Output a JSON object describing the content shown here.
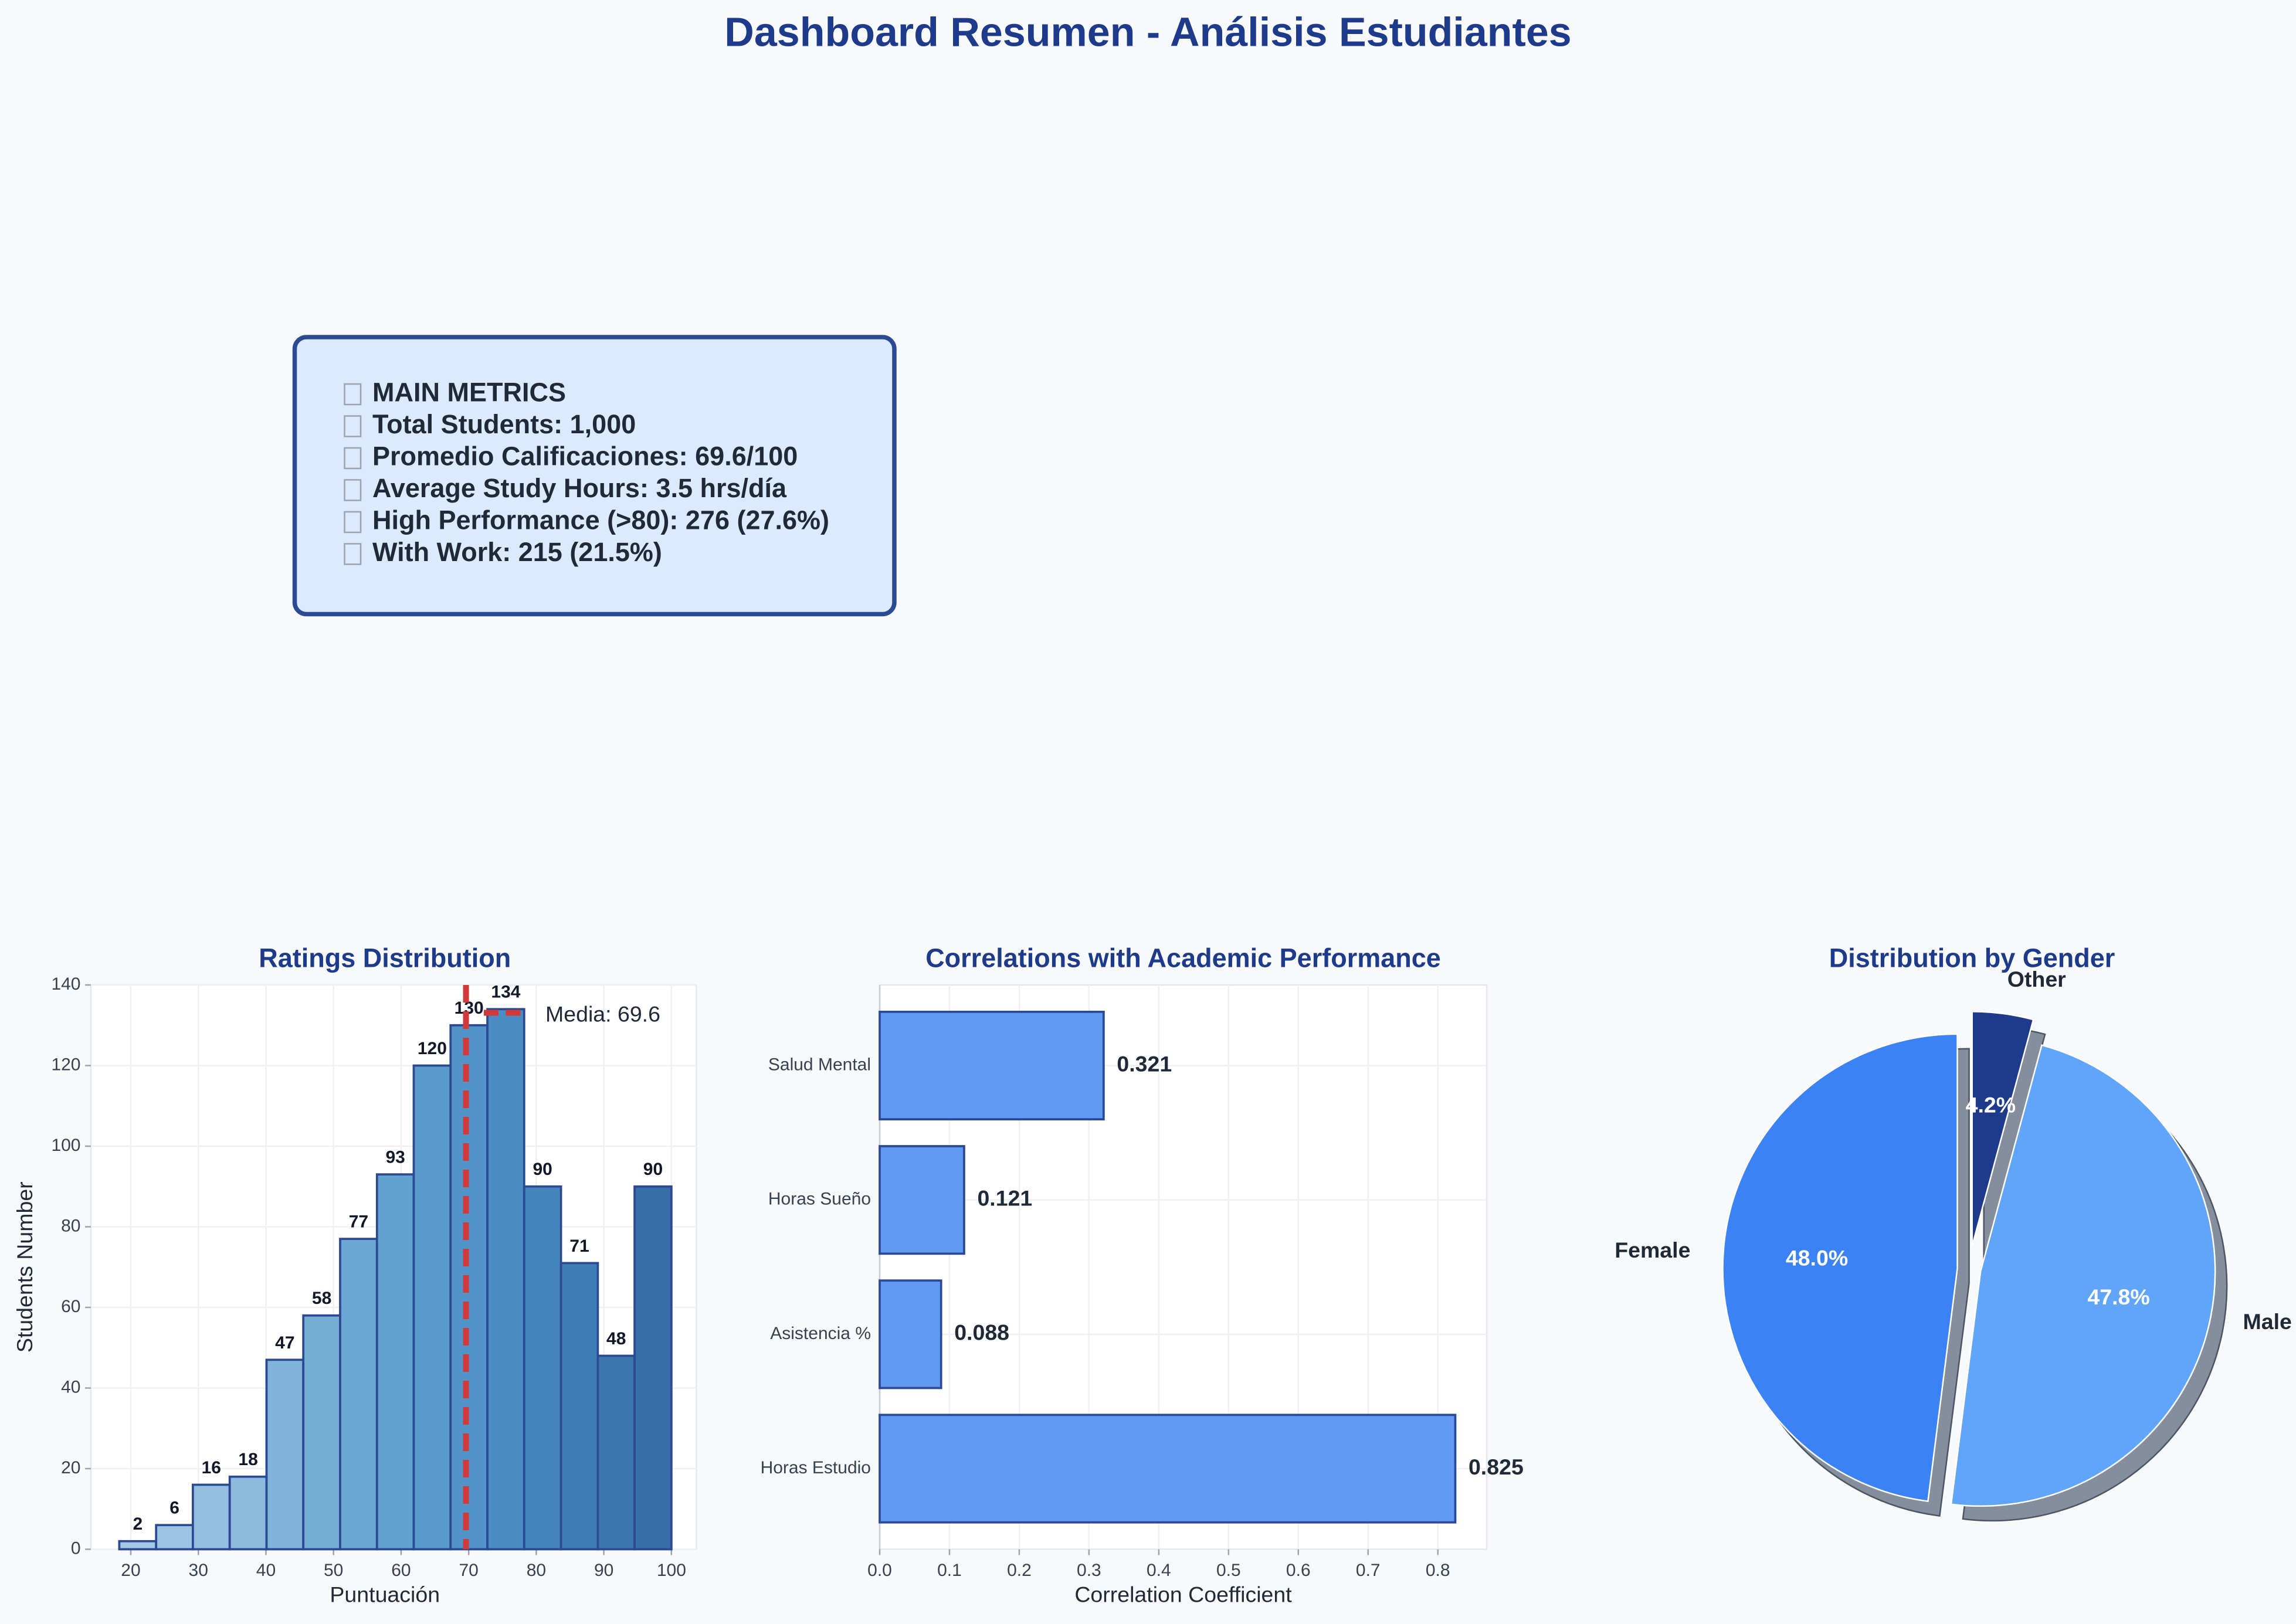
{
  "title": "Dashboard Resumen - Análisis Estudiantes",
  "metrics": [
    "MAIN METRICS",
    "Total Students: 1,000",
    "Promedio Calificaciones: 69.6/100",
    "Average Study Hours: 3.5 hrs/día",
    "High Performance (>80): 276 (27.6%)",
    "With Work: 215 (21.5%)"
  ],
  "chart_data": [
    {
      "type": "histogram",
      "title": "Ratings Distribution",
      "x_label": "Puntuación",
      "y_label": "Students Number",
      "bins": [
        18.3,
        23.75,
        29.19,
        34.64,
        40.09,
        45.53,
        50.98,
        56.43,
        61.87,
        67.32,
        72.77,
        78.21,
        83.66,
        89.11,
        94.55,
        100
      ],
      "values": [
        2,
        6,
        16,
        18,
        47,
        58,
        77,
        93,
        120,
        130,
        134,
        90,
        71,
        48,
        90
      ],
      "colors": [
        "#a4c8e4",
        "#9cc4e2",
        "#94bfe0",
        "#8cbbde",
        "#80b4da",
        "#76aed6",
        "#6ca8d3",
        "#62a2d0",
        "#5a9bcc",
        "#5294c8",
        "#4a8dc3",
        "#4585bd",
        "#407db6",
        "#3c76ae",
        "#386ea6"
      ],
      "edge_color": "#2c4a93",
      "xlim": [
        14.1,
        103.7
      ],
      "ylim": [
        0,
        140
      ],
      "xticks": [
        20,
        30,
        40,
        50,
        60,
        70,
        80,
        90,
        100
      ],
      "yticks": [
        0,
        20,
        40,
        60,
        80,
        100,
        120,
        140
      ],
      "grid": true,
      "mean": 69.6,
      "mean_label": "Media: 69.6",
      "mean_color": "#d03a3a"
    },
    {
      "type": "barh",
      "title": "Correlations with Academic Performance",
      "x_label": "Correlation Coefficient",
      "categories": [
        "Horas Estudio",
        "Asistencia %",
        "Horas Sueño",
        "Salud Mental"
      ],
      "values": [
        0.825,
        0.088,
        0.121,
        0.321
      ],
      "color": "#6199f5",
      "edge_color": "#2c4a93",
      "xlim": [
        0,
        0.87
      ],
      "xticks": [
        {
          "value": 0,
          "label": "0.0"
        },
        0.1,
        0.2,
        0.3,
        0.4,
        0.5,
        0.6,
        0.7,
        0.8
      ],
      "grid": true
    },
    {
      "type": "pie",
      "title": "Distribution by Gender",
      "categories": [
        "Female",
        "Male",
        "Other"
      ],
      "values": [
        48.0,
        47.8,
        4.2
      ],
      "value_labels": [
        "48.0%",
        "47.8%",
        "4.2%"
      ],
      "colors": [
        "#3b82f6",
        "#60a5fa",
        "#1e3a8a"
      ],
      "start_angle": 90,
      "shadow": true
    }
  ]
}
